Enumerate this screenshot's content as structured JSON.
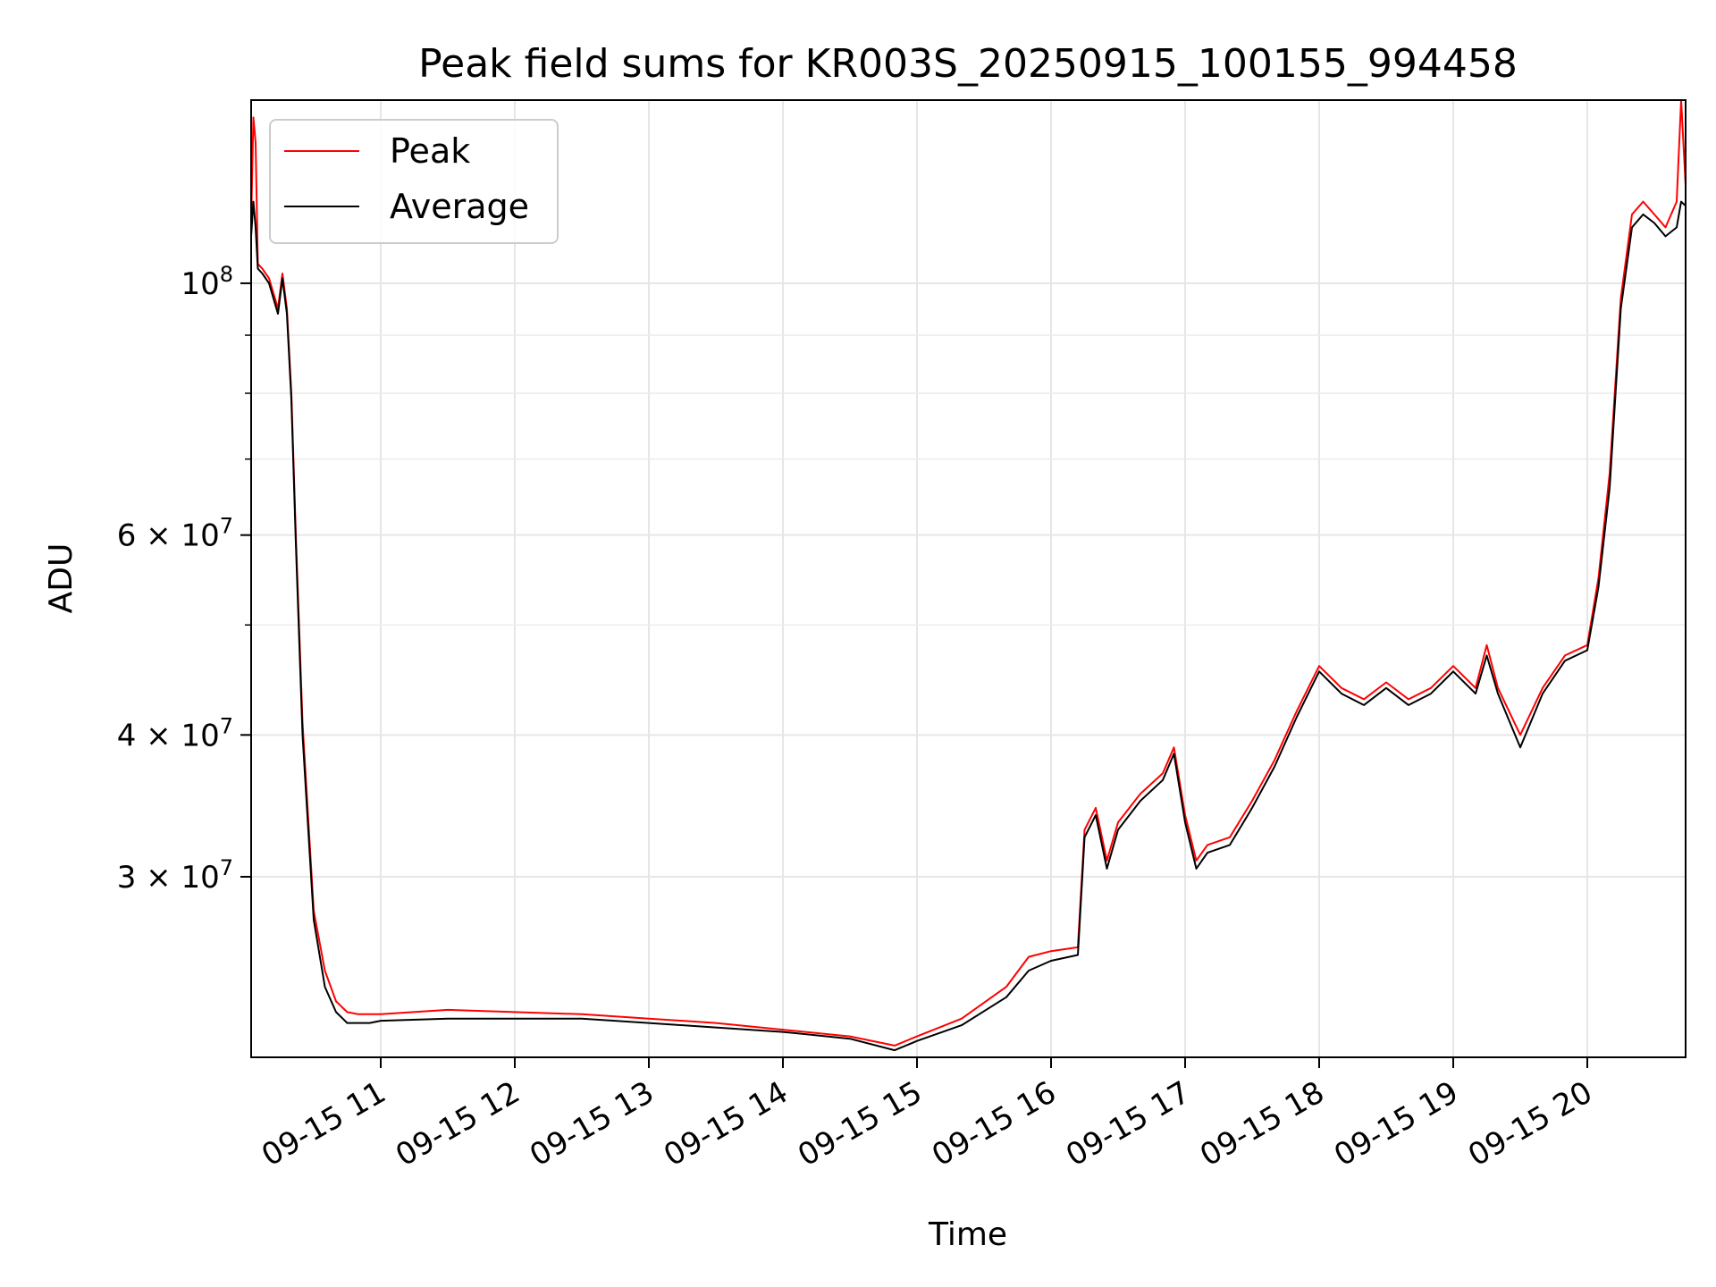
{
  "chart_data": {
    "type": "line",
    "title": "Peak field sums for KR003S_20250915_100155_994458",
    "xlabel": "Time",
    "ylabel": "ADU",
    "yscale": "log",
    "xlim": [
      "2025-09-15T10:02",
      "2025-09-15T20:44"
    ],
    "ylim": [
      20800000,
      145000000
    ],
    "grid": true,
    "legend_position": "top-left",
    "x_tick_labels": [
      "09-15 11",
      "09-15 12",
      "09-15 13",
      "09-15 14",
      "09-15 15",
      "09-15 16",
      "09-15 17",
      "09-15 18",
      "09-15 19",
      "09-15 20"
    ],
    "x_ticks": [
      "2025-09-15T11:00",
      "2025-09-15T12:00",
      "2025-09-15T13:00",
      "2025-09-15T14:00",
      "2025-09-15T15:00",
      "2025-09-15T16:00",
      "2025-09-15T17:00",
      "2025-09-15T18:00",
      "2025-09-15T19:00",
      "2025-09-15T20:00"
    ],
    "y_ticks": [
      {
        "value": 100000000,
        "mantissa": "",
        "exponent": "8"
      },
      {
        "value": 60000000,
        "mantissa": "6",
        "exponent": "7"
      },
      {
        "value": 40000000,
        "mantissa": "4",
        "exponent": "7"
      },
      {
        "value": 30000000,
        "mantissa": "3",
        "exponent": "7"
      }
    ],
    "y_minor_ticks": [
      90000000,
      80000000,
      70000000,
      50000000
    ],
    "series": [
      {
        "name": "Peak",
        "color": "#ff0000",
        "x": [
          "2025-09-15T10:02",
          "2025-09-15T10:03",
          "2025-09-15T10:04",
          "2025-09-15T10:05",
          "2025-09-15T10:07",
          "2025-09-15T10:10",
          "2025-09-15T10:14",
          "2025-09-15T10:16",
          "2025-09-15T10:18",
          "2025-09-15T10:20",
          "2025-09-15T10:22",
          "2025-09-15T10:25",
          "2025-09-15T10:30",
          "2025-09-15T10:35",
          "2025-09-15T10:40",
          "2025-09-15T10:45",
          "2025-09-15T10:50",
          "2025-09-15T10:55",
          "2025-09-15T11:00",
          "2025-09-15T11:30",
          "2025-09-15T12:00",
          "2025-09-15T12:30",
          "2025-09-15T13:00",
          "2025-09-15T13:30",
          "2025-09-15T14:00",
          "2025-09-15T14:30",
          "2025-09-15T14:50",
          "2025-09-15T15:00",
          "2025-09-15T15:20",
          "2025-09-15T15:40",
          "2025-09-15T15:50",
          "2025-09-15T16:00",
          "2025-09-15T16:12",
          "2025-09-15T16:15",
          "2025-09-15T16:20",
          "2025-09-15T16:25",
          "2025-09-15T16:30",
          "2025-09-15T16:40",
          "2025-09-15T16:50",
          "2025-09-15T16:55",
          "2025-09-15T17:00",
          "2025-09-15T17:05",
          "2025-09-15T17:10",
          "2025-09-15T17:20",
          "2025-09-15T17:30",
          "2025-09-15T17:40",
          "2025-09-15T17:50",
          "2025-09-15T18:00",
          "2025-09-15T18:10",
          "2025-09-15T18:20",
          "2025-09-15T18:30",
          "2025-09-15T18:40",
          "2025-09-15T18:50",
          "2025-09-15T19:00",
          "2025-09-15T19:10",
          "2025-09-15T19:15",
          "2025-09-15T19:20",
          "2025-09-15T19:30",
          "2025-09-15T19:40",
          "2025-09-15T19:50",
          "2025-09-15T20:00",
          "2025-09-15T20:05",
          "2025-09-15T20:10",
          "2025-09-15T20:15",
          "2025-09-15T20:20",
          "2025-09-15T20:25",
          "2025-09-15T20:30",
          "2025-09-15T20:35",
          "2025-09-15T20:40",
          "2025-09-15T20:42",
          "2025-09-15T20:44"
        ],
        "values": [
          113000000,
          140000000,
          133000000,
          104000000,
          103000000,
          101000000,
          95000000,
          102000000,
          95000000,
          80000000,
          60000000,
          41000000,
          28000000,
          24800000,
          23300000,
          22800000,
          22700000,
          22700000,
          22700000,
          22900000,
          22800000,
          22700000,
          22500000,
          22300000,
          22000000,
          21700000,
          21300000,
          21700000,
          22500000,
          24000000,
          25500000,
          25800000,
          26000000,
          33000000,
          34500000,
          31000000,
          33500000,
          35500000,
          37000000,
          39000000,
          34000000,
          31000000,
          32000000,
          32500000,
          35000000,
          38000000,
          42000000,
          46000000,
          44000000,
          43000000,
          44500000,
          43000000,
          44000000,
          46000000,
          44000000,
          48000000,
          44000000,
          40000000,
          44000000,
          47000000,
          48000000,
          55000000,
          68000000,
          97000000,
          115000000,
          118000000,
          115000000,
          112000000,
          118000000,
          145000000,
          122000000
        ]
      },
      {
        "name": "Average",
        "color": "#000000",
        "x": [
          "2025-09-15T10:02",
          "2025-09-15T10:03",
          "2025-09-15T10:04",
          "2025-09-15T10:05",
          "2025-09-15T10:07",
          "2025-09-15T10:10",
          "2025-09-15T10:14",
          "2025-09-15T10:16",
          "2025-09-15T10:18",
          "2025-09-15T10:20",
          "2025-09-15T10:22",
          "2025-09-15T10:25",
          "2025-09-15T10:30",
          "2025-09-15T10:35",
          "2025-09-15T10:40",
          "2025-09-15T10:45",
          "2025-09-15T10:50",
          "2025-09-15T10:55",
          "2025-09-15T11:00",
          "2025-09-15T11:30",
          "2025-09-15T12:00",
          "2025-09-15T12:30",
          "2025-09-15T13:00",
          "2025-09-15T13:30",
          "2025-09-15T14:00",
          "2025-09-15T14:30",
          "2025-09-15T14:50",
          "2025-09-15T15:00",
          "2025-09-15T15:20",
          "2025-09-15T15:40",
          "2025-09-15T15:50",
          "2025-09-15T16:00",
          "2025-09-15T16:12",
          "2025-09-15T16:15",
          "2025-09-15T16:20",
          "2025-09-15T16:25",
          "2025-09-15T16:30",
          "2025-09-15T16:40",
          "2025-09-15T16:50",
          "2025-09-15T16:55",
          "2025-09-15T17:00",
          "2025-09-15T17:05",
          "2025-09-15T17:10",
          "2025-09-15T17:20",
          "2025-09-15T17:30",
          "2025-09-15T17:40",
          "2025-09-15T17:50",
          "2025-09-15T18:00",
          "2025-09-15T18:10",
          "2025-09-15T18:20",
          "2025-09-15T18:30",
          "2025-09-15T18:40",
          "2025-09-15T18:50",
          "2025-09-15T19:00",
          "2025-09-15T19:10",
          "2025-09-15T19:15",
          "2025-09-15T19:20",
          "2025-09-15T19:30",
          "2025-09-15T19:40",
          "2025-09-15T19:50",
          "2025-09-15T20:00",
          "2025-09-15T20:05",
          "2025-09-15T20:10",
          "2025-09-15T20:15",
          "2025-09-15T20:20",
          "2025-09-15T20:25",
          "2025-09-15T20:30",
          "2025-09-15T20:35",
          "2025-09-15T20:40",
          "2025-09-15T20:42",
          "2025-09-15T20:44"
        ],
        "values": [
          110000000,
          118000000,
          112000000,
          103000000,
          102000000,
          100000000,
          94000000,
          101000000,
          94000000,
          79000000,
          59000000,
          40000000,
          27500000,
          24000000,
          22800000,
          22300000,
          22300000,
          22300000,
          22400000,
          22500000,
          22500000,
          22500000,
          22300000,
          22100000,
          21900000,
          21600000,
          21100000,
          21500000,
          22200000,
          23500000,
          24800000,
          25300000,
          25600000,
          32500000,
          34000000,
          30500000,
          33000000,
          35000000,
          36500000,
          38500000,
          33500000,
          30500000,
          31500000,
          32000000,
          34500000,
          37500000,
          41500000,
          45500000,
          43500000,
          42500000,
          44000000,
          42500000,
          43500000,
          45500000,
          43500000,
          47000000,
          43500000,
          39000000,
          43500000,
          46500000,
          47500000,
          54000000,
          66000000,
          95000000,
          112000000,
          115000000,
          113000000,
          110000000,
          112000000,
          118000000,
          117000000
        ]
      }
    ]
  }
}
